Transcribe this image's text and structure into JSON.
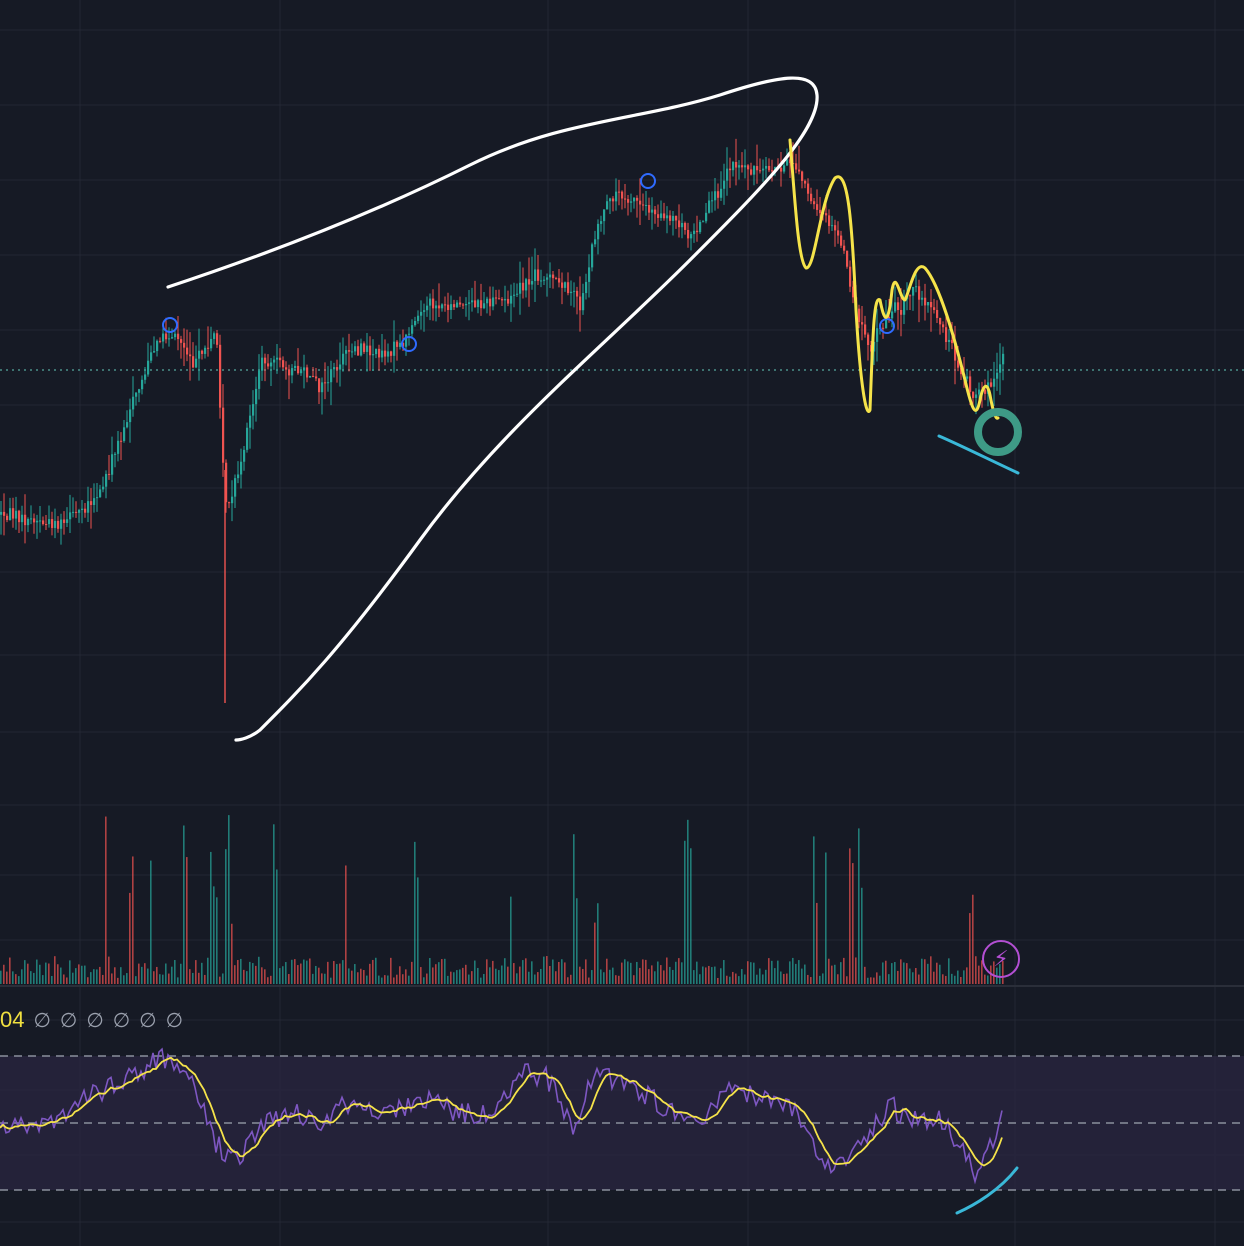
{
  "colors": {
    "background": "#161a25",
    "grid": "#232734",
    "up": "#26a69a",
    "down": "#ef5350",
    "rsi": "#7e57c2",
    "rsi_ma": "#f5e34a",
    "rsi_band": "#2a2540",
    "price_line": "#4a8f8a",
    "marker": "#2f6bff",
    "drawing_white": "#ffffff",
    "drawing_yellow": "#f5e34a",
    "drawing_cyan": "#3ab8d8",
    "drawing_green_ring": "#3e9a86",
    "lightning": "#b34fd3"
  },
  "rsi_legend": {
    "value_fragment": "04",
    "na_values": [
      "∅",
      "∅",
      "∅",
      "∅",
      "∅",
      "∅"
    ]
  },
  "lightning_icon": "⚡",
  "chart_data": {
    "type": "candlestick",
    "panes": [
      "price",
      "volume",
      "rsi"
    ],
    "price_keypoints": [
      [
        0,
        0.76
      ],
      [
        60,
        0.78
      ],
      [
        100,
        0.72
      ],
      [
        130,
        0.58
      ],
      [
        160,
        0.46
      ],
      [
        175,
        0.46
      ],
      [
        195,
        0.51
      ],
      [
        215,
        0.45
      ],
      [
        225,
        0.75
      ],
      [
        240,
        0.68
      ],
      [
        260,
        0.5
      ],
      [
        300,
        0.52
      ],
      [
        320,
        0.55
      ],
      [
        350,
        0.48
      ],
      [
        380,
        0.49
      ],
      [
        400,
        0.48
      ],
      [
        415,
        0.43
      ],
      [
        430,
        0.41
      ],
      [
        470,
        0.41
      ],
      [
        510,
        0.4
      ],
      [
        535,
        0.36
      ],
      [
        560,
        0.37
      ],
      [
        580,
        0.41
      ],
      [
        595,
        0.28
      ],
      [
        615,
        0.22
      ],
      [
        650,
        0.25
      ],
      [
        680,
        0.27
      ],
      [
        690,
        0.3
      ],
      [
        705,
        0.26
      ],
      [
        730,
        0.17
      ],
      [
        760,
        0.19
      ],
      [
        790,
        0.17
      ],
      [
        810,
        0.23
      ],
      [
        830,
        0.28
      ],
      [
        840,
        0.3
      ],
      [
        855,
        0.42
      ],
      [
        870,
        0.48
      ],
      [
        885,
        0.43
      ],
      [
        900,
        0.41
      ],
      [
        915,
        0.38
      ],
      [
        940,
        0.44
      ],
      [
        960,
        0.52
      ],
      [
        975,
        0.57
      ],
      [
        990,
        0.54
      ],
      [
        1003,
        0.48
      ]
    ],
    "volume_spike_x": [
      105,
      130,
      150,
      185,
      210,
      215,
      225,
      230,
      275,
      345,
      415,
      510,
      575,
      595,
      685,
      690,
      815,
      825,
      850,
      860,
      970
    ],
    "rsi_keypoints": [
      [
        0,
        0.5
      ],
      [
        30,
        0.55
      ],
      [
        60,
        0.5
      ],
      [
        90,
        0.35
      ],
      [
        120,
        0.25
      ],
      [
        160,
        0.12
      ],
      [
        180,
        0.15
      ],
      [
        195,
        0.32
      ],
      [
        215,
        0.65
      ],
      [
        235,
        0.75
      ],
      [
        260,
        0.55
      ],
      [
        285,
        0.45
      ],
      [
        320,
        0.5
      ],
      [
        350,
        0.38
      ],
      [
        380,
        0.44
      ],
      [
        405,
        0.42
      ],
      [
        430,
        0.38
      ],
      [
        460,
        0.45
      ],
      [
        490,
        0.45
      ],
      [
        520,
        0.2
      ],
      [
        545,
        0.22
      ],
      [
        575,
        0.55
      ],
      [
        595,
        0.18
      ],
      [
        615,
        0.25
      ],
      [
        640,
        0.32
      ],
      [
        670,
        0.45
      ],
      [
        700,
        0.55
      ],
      [
        730,
        0.3
      ],
      [
        760,
        0.35
      ],
      [
        790,
        0.4
      ],
      [
        815,
        0.65
      ],
      [
        825,
        0.8
      ],
      [
        850,
        0.75
      ],
      [
        870,
        0.6
      ],
      [
        890,
        0.4
      ],
      [
        910,
        0.5
      ],
      [
        935,
        0.48
      ],
      [
        955,
        0.62
      ],
      [
        975,
        0.82
      ],
      [
        992,
        0.62
      ],
      [
        1003,
        0.45
      ]
    ],
    "rsi_levels": [
      70,
      50,
      30
    ]
  }
}
